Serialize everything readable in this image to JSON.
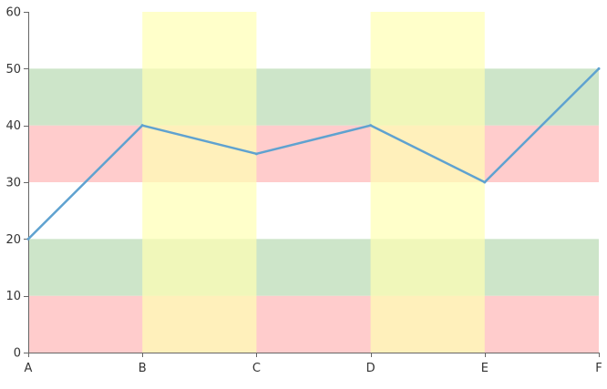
{
  "chart_data": {
    "type": "line",
    "title": "",
    "xlabel": "",
    "ylabel": "",
    "categories": [
      "A",
      "B",
      "C",
      "D",
      "E",
      "F"
    ],
    "series": [
      {
        "values": [
          20,
          40,
          35,
          40,
          30,
          50
        ],
        "color": "#5fa2d0"
      }
    ],
    "ylim": [
      0,
      60
    ],
    "yticks": [
      0,
      10,
      20,
      30,
      40,
      50,
      60
    ],
    "grid": false,
    "horizontal_bands": [
      {
        "from": 0,
        "to": 10,
        "color": "#ffcccc"
      },
      {
        "from": 10,
        "to": 20,
        "color": "#cde5c9"
      },
      {
        "from": 30,
        "to": 40,
        "color": "#ffcccc"
      },
      {
        "from": 40,
        "to": 50,
        "color": "#cde5c9"
      }
    ],
    "vertical_bands": [
      {
        "from": "B",
        "to": "C",
        "color": "#ffffb3",
        "opacity": 0.7
      },
      {
        "from": "D",
        "to": "E",
        "color": "#ffffb3",
        "opacity": 0.7
      }
    ],
    "axis_color": "#666666"
  }
}
